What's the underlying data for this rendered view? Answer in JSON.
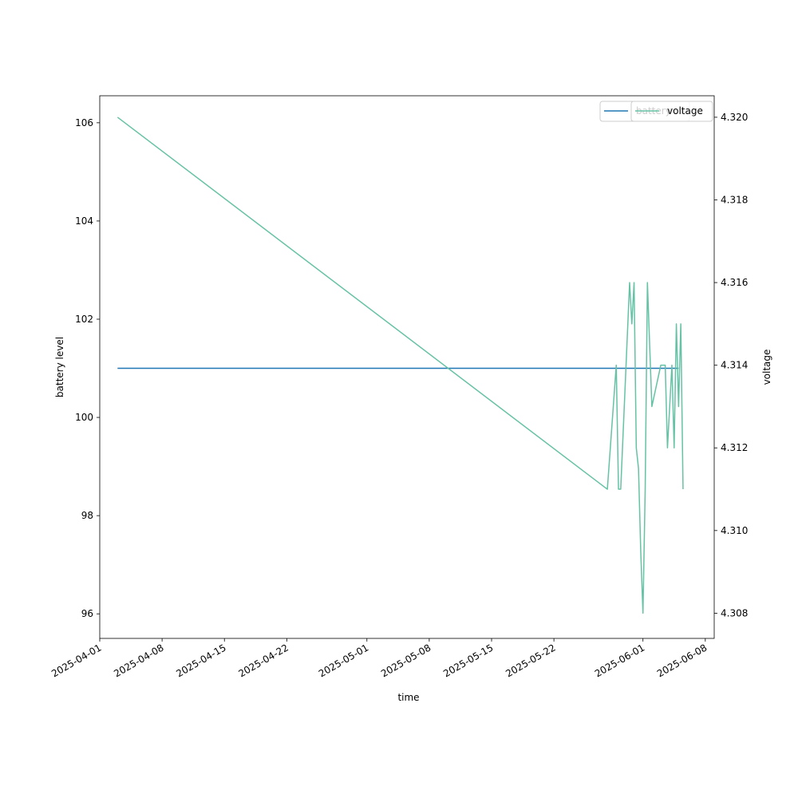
{
  "chart_data": {
    "type": "line",
    "title": "",
    "xlabel": "time",
    "ylabel_left": "battery level",
    "ylabel_right": "voltage",
    "x_axis": {
      "type": "date",
      "range": [
        "2025-04-01",
        "2025-06-09"
      ],
      "ticks": [
        "2025-04-01",
        "2025-04-08",
        "2025-04-15",
        "2025-04-22",
        "2025-05-01",
        "2025-05-08",
        "2025-05-15",
        "2025-05-22",
        "2025-06-01",
        "2025-06-08"
      ]
    },
    "y_left": {
      "range": [
        95.5,
        106.55
      ],
      "ticks": [
        "96",
        "98",
        "100",
        "102",
        "104",
        "106"
      ]
    },
    "y_right": {
      "range": [
        4.30739,
        4.32052
      ],
      "ticks": [
        "4.308",
        "4.310",
        "4.312",
        "4.314",
        "4.316",
        "4.318",
        "4.320"
      ]
    },
    "series": [
      {
        "name": "battery",
        "axis": "left",
        "color": "#1f77b4",
        "points": [
          [
            "2025-04-03",
            101
          ],
          [
            "2025-06-05",
            101
          ]
        ]
      },
      {
        "name": "voltage",
        "axis": "right",
        "color": "#66c2a5",
        "points": [
          [
            "2025-04-03",
            4.32
          ],
          [
            "2025-05-28",
            4.311
          ],
          [
            "2025-05-29",
            4.314
          ],
          [
            "2025-05-29 06:00",
            4.311
          ],
          [
            "2025-05-29 12:00",
            4.311
          ],
          [
            "2025-05-30 12:00",
            4.316
          ],
          [
            "2025-05-30 18:00",
            4.315
          ],
          [
            "2025-05-31",
            4.316
          ],
          [
            "2025-05-31 06:00",
            4.312
          ],
          [
            "2025-05-31 12:00",
            4.3115
          ],
          [
            "2025-05-31 18:00",
            4.3095
          ],
          [
            "2025-06-01",
            4.308
          ],
          [
            "2025-06-01 06:00",
            4.311
          ],
          [
            "2025-06-01 12:00",
            4.316
          ],
          [
            "2025-06-02",
            4.313
          ],
          [
            "2025-06-03",
            4.314
          ],
          [
            "2025-06-03 12:00",
            4.314
          ],
          [
            "2025-06-03 18:00",
            4.312
          ],
          [
            "2025-06-04",
            4.313
          ],
          [
            "2025-06-04 06:00",
            4.314
          ],
          [
            "2025-06-04 12:00",
            4.312
          ],
          [
            "2025-06-04 18:00",
            4.315
          ],
          [
            "2025-06-05",
            4.313
          ],
          [
            "2025-06-05 06:00",
            4.315
          ],
          [
            "2025-06-05 12:00",
            4.311
          ]
        ]
      }
    ],
    "legends": [
      {
        "placement": "upper right",
        "entries": [
          "battery"
        ],
        "color": "#1f77b4"
      },
      {
        "placement": "upper right",
        "entries": [
          "voltage"
        ],
        "color": "#66c2a5"
      }
    ],
    "grid": false
  }
}
